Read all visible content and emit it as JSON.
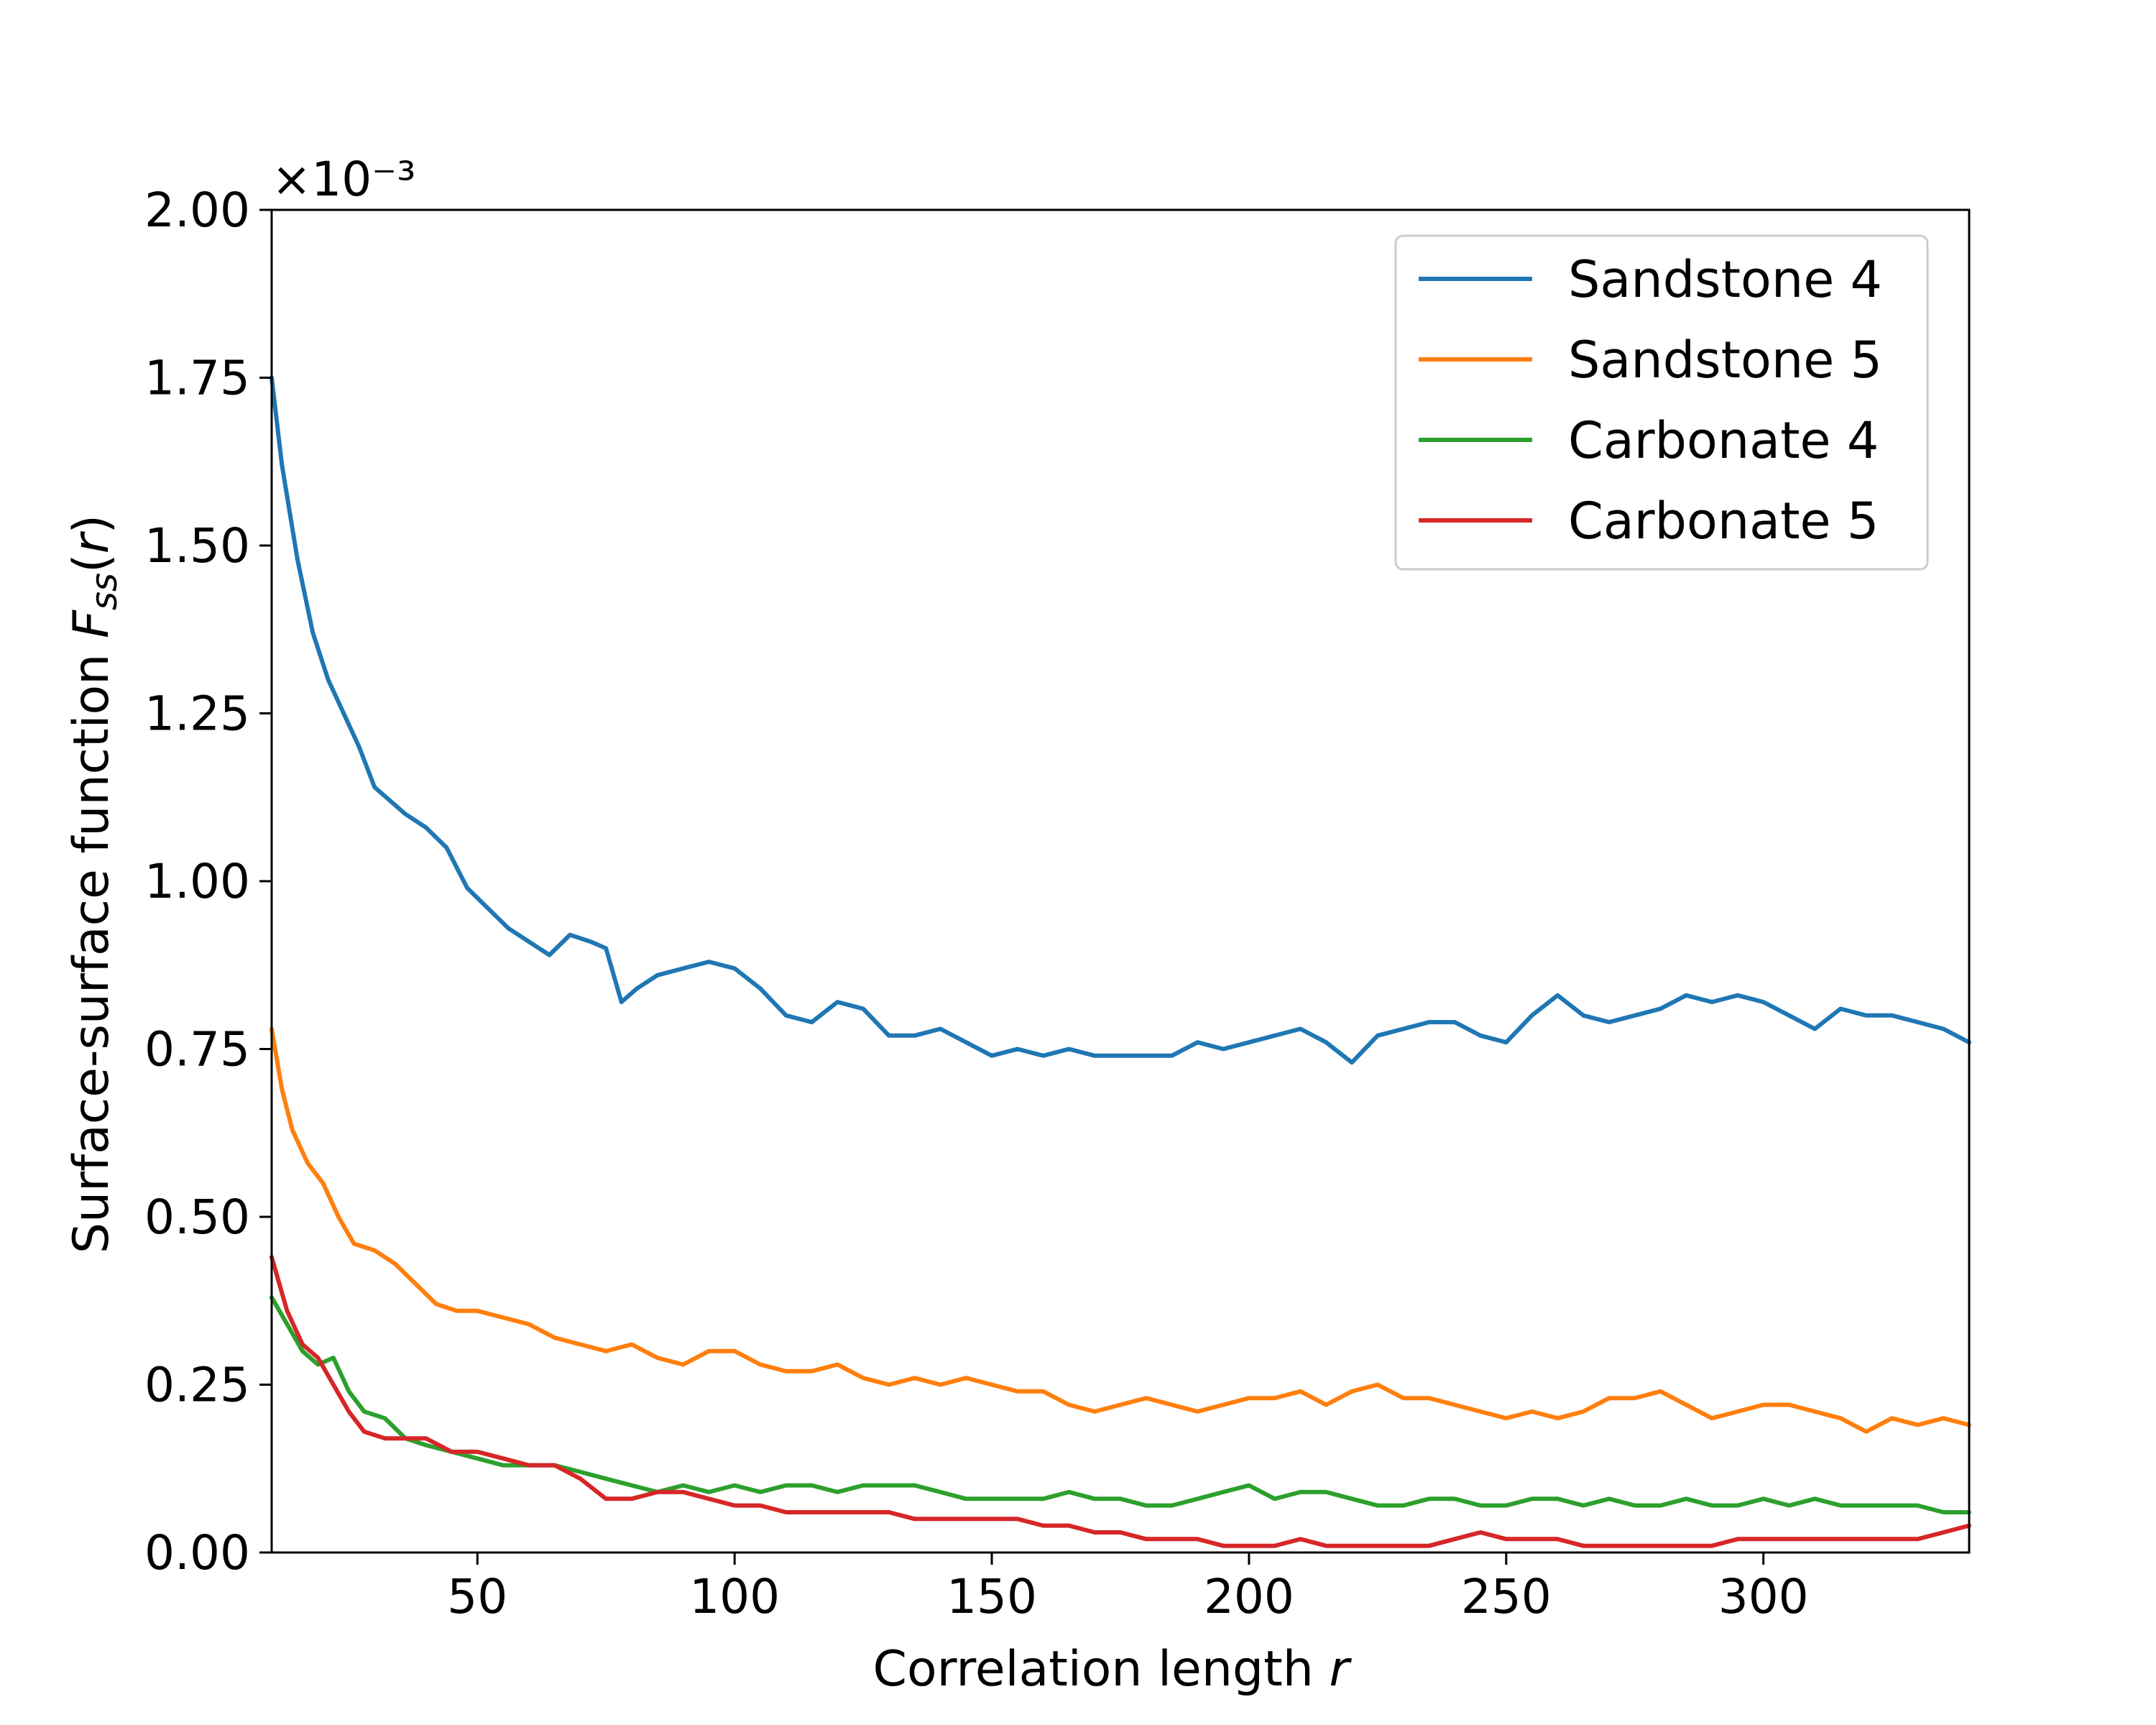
{
  "chart_data": {
    "type": "line",
    "title": "",
    "xlabel": "Correlation length r",
    "ylabel": "Surface-surface function F_ss(r)",
    "y_multiplier": "×10⁻³",
    "xlim": [
      10,
      340
    ],
    "ylim": [
      0,
      2.0
    ],
    "xticks": [
      50,
      100,
      150,
      200,
      250,
      300
    ],
    "xtick_labels": [
      "50",
      "100",
      "150",
      "200",
      "250",
      "300"
    ],
    "yticks": [
      0,
      0.25,
      0.5,
      0.75,
      1.0,
      1.25,
      1.5,
      1.75,
      2.0
    ],
    "ytick_labels": [
      "0.00",
      "0.25",
      "0.50",
      "0.75",
      "1.00",
      "1.25",
      "1.50",
      "1.75",
      "2.00"
    ],
    "grid": false,
    "legend": "top-right",
    "series": [
      {
        "name": "Sandstone 4",
        "color": "#1f77b4",
        "x": [
          10,
          12,
          15,
          18,
          21,
          24,
          27,
          30,
          33,
          36,
          40,
          44,
          48,
          52,
          56,
          60,
          64,
          68,
          72,
          75,
          78,
          81,
          85,
          90,
          95,
          100,
          105,
          110,
          115,
          120,
          125,
          130,
          135,
          140,
          145,
          150,
          155,
          160,
          165,
          170,
          175,
          180,
          185,
          190,
          195,
          200,
          205,
          210,
          215,
          220,
          225,
          230,
          235,
          240,
          245,
          250,
          255,
          260,
          265,
          270,
          275,
          280,
          285,
          290,
          295,
          300,
          305,
          310,
          315,
          320,
          325,
          330,
          335,
          340
        ],
        "y": [
          1.75,
          1.62,
          1.48,
          1.37,
          1.3,
          1.25,
          1.2,
          1.14,
          1.12,
          1.1,
          1.08,
          1.05,
          0.99,
          0.96,
          0.93,
          0.91,
          0.89,
          0.92,
          0.91,
          0.9,
          0.82,
          0.84,
          0.86,
          0.87,
          0.88,
          0.87,
          0.84,
          0.8,
          0.79,
          0.82,
          0.81,
          0.77,
          0.77,
          0.78,
          0.76,
          0.74,
          0.75,
          0.74,
          0.75,
          0.74,
          0.74,
          0.74,
          0.74,
          0.76,
          0.75,
          0.76,
          0.77,
          0.78,
          0.76,
          0.73,
          0.77,
          0.78,
          0.79,
          0.79,
          0.77,
          0.76,
          0.8,
          0.83,
          0.8,
          0.79,
          0.8,
          0.81,
          0.83,
          0.82,
          0.83,
          0.82,
          0.8,
          0.78,
          0.81,
          0.8,
          0.8,
          0.79,
          0.78,
          0.76
        ]
      },
      {
        "name": "Sandstone 5",
        "color": "#ff7f0e",
        "x": [
          10,
          12,
          14,
          17,
          20,
          23,
          26,
          30,
          34,
          38,
          42,
          46,
          50,
          55,
          60,
          65,
          70,
          75,
          80,
          85,
          90,
          95,
          100,
          105,
          110,
          115,
          120,
          125,
          130,
          135,
          140,
          145,
          150,
          155,
          160,
          165,
          170,
          175,
          180,
          185,
          190,
          195,
          200,
          205,
          210,
          215,
          220,
          225,
          230,
          235,
          240,
          245,
          250,
          255,
          260,
          265,
          270,
          275,
          280,
          285,
          290,
          295,
          300,
          305,
          310,
          315,
          320,
          325,
          330,
          335,
          340
        ],
        "y": [
          0.78,
          0.69,
          0.63,
          0.58,
          0.55,
          0.5,
          0.46,
          0.45,
          0.43,
          0.4,
          0.37,
          0.36,
          0.36,
          0.35,
          0.34,
          0.32,
          0.31,
          0.3,
          0.31,
          0.29,
          0.28,
          0.3,
          0.3,
          0.28,
          0.27,
          0.27,
          0.28,
          0.26,
          0.25,
          0.26,
          0.25,
          0.26,
          0.25,
          0.24,
          0.24,
          0.22,
          0.21,
          0.22,
          0.23,
          0.22,
          0.21,
          0.22,
          0.23,
          0.23,
          0.24,
          0.22,
          0.24,
          0.25,
          0.23,
          0.23,
          0.22,
          0.21,
          0.2,
          0.21,
          0.2,
          0.21,
          0.23,
          0.23,
          0.24,
          0.22,
          0.2,
          0.21,
          0.22,
          0.22,
          0.21,
          0.2,
          0.18,
          0.2,
          0.19,
          0.2,
          0.19
        ]
      },
      {
        "name": "Carbonate 4",
        "color": "#2ca02c",
        "x": [
          10,
          13,
          16,
          19,
          22,
          25,
          28,
          32,
          36,
          40,
          45,
          50,
          55,
          60,
          65,
          70,
          75,
          80,
          85,
          90,
          95,
          100,
          105,
          110,
          115,
          120,
          125,
          130,
          135,
          140,
          145,
          150,
          155,
          160,
          165,
          170,
          175,
          180,
          185,
          190,
          195,
          200,
          205,
          210,
          215,
          220,
          225,
          230,
          235,
          240,
          245,
          250,
          255,
          260,
          265,
          270,
          275,
          280,
          285,
          290,
          295,
          300,
          305,
          310,
          315,
          320,
          325,
          330,
          335,
          340
        ],
        "y": [
          0.38,
          0.34,
          0.3,
          0.28,
          0.29,
          0.24,
          0.21,
          0.2,
          0.17,
          0.16,
          0.15,
          0.14,
          0.13,
          0.13,
          0.13,
          0.12,
          0.11,
          0.1,
          0.09,
          0.1,
          0.09,
          0.1,
          0.09,
          0.1,
          0.1,
          0.09,
          0.1,
          0.1,
          0.1,
          0.09,
          0.08,
          0.08,
          0.08,
          0.08,
          0.09,
          0.08,
          0.08,
          0.07,
          0.07,
          0.08,
          0.09,
          0.1,
          0.08,
          0.09,
          0.09,
          0.08,
          0.07,
          0.07,
          0.08,
          0.08,
          0.07,
          0.07,
          0.08,
          0.08,
          0.07,
          0.08,
          0.07,
          0.07,
          0.08,
          0.07,
          0.07,
          0.08,
          0.07,
          0.08,
          0.07,
          0.07,
          0.07,
          0.07,
          0.06,
          0.06
        ]
      },
      {
        "name": "Carbonate 5",
        "color": "#d62728",
        "x": [
          10,
          13,
          16,
          19,
          22,
          25,
          28,
          32,
          36,
          40,
          45,
          50,
          55,
          60,
          65,
          70,
          75,
          80,
          85,
          90,
          95,
          100,
          105,
          110,
          115,
          120,
          125,
          130,
          135,
          140,
          145,
          150,
          155,
          160,
          165,
          170,
          175,
          180,
          185,
          190,
          195,
          200,
          205,
          210,
          215,
          220,
          225,
          230,
          235,
          240,
          245,
          250,
          255,
          260,
          265,
          270,
          275,
          280,
          285,
          290,
          295,
          300,
          305,
          310,
          315,
          320,
          325,
          330,
          335,
          340
        ],
        "y": [
          0.44,
          0.36,
          0.31,
          0.29,
          0.25,
          0.21,
          0.18,
          0.17,
          0.17,
          0.17,
          0.15,
          0.15,
          0.14,
          0.13,
          0.13,
          0.11,
          0.08,
          0.08,
          0.09,
          0.09,
          0.08,
          0.07,
          0.07,
          0.06,
          0.06,
          0.06,
          0.06,
          0.06,
          0.05,
          0.05,
          0.05,
          0.05,
          0.05,
          0.04,
          0.04,
          0.03,
          0.03,
          0.02,
          0.02,
          0.02,
          0.01,
          0.01,
          0.01,
          0.02,
          0.01,
          0.01,
          0.01,
          0.01,
          0.01,
          0.02,
          0.03,
          0.02,
          0.02,
          0.02,
          0.01,
          0.01,
          0.01,
          0.01,
          0.01,
          0.01,
          0.02,
          0.02,
          0.02,
          0.02,
          0.02,
          0.02,
          0.02,
          0.02,
          0.03,
          0.04
        ]
      }
    ]
  }
}
